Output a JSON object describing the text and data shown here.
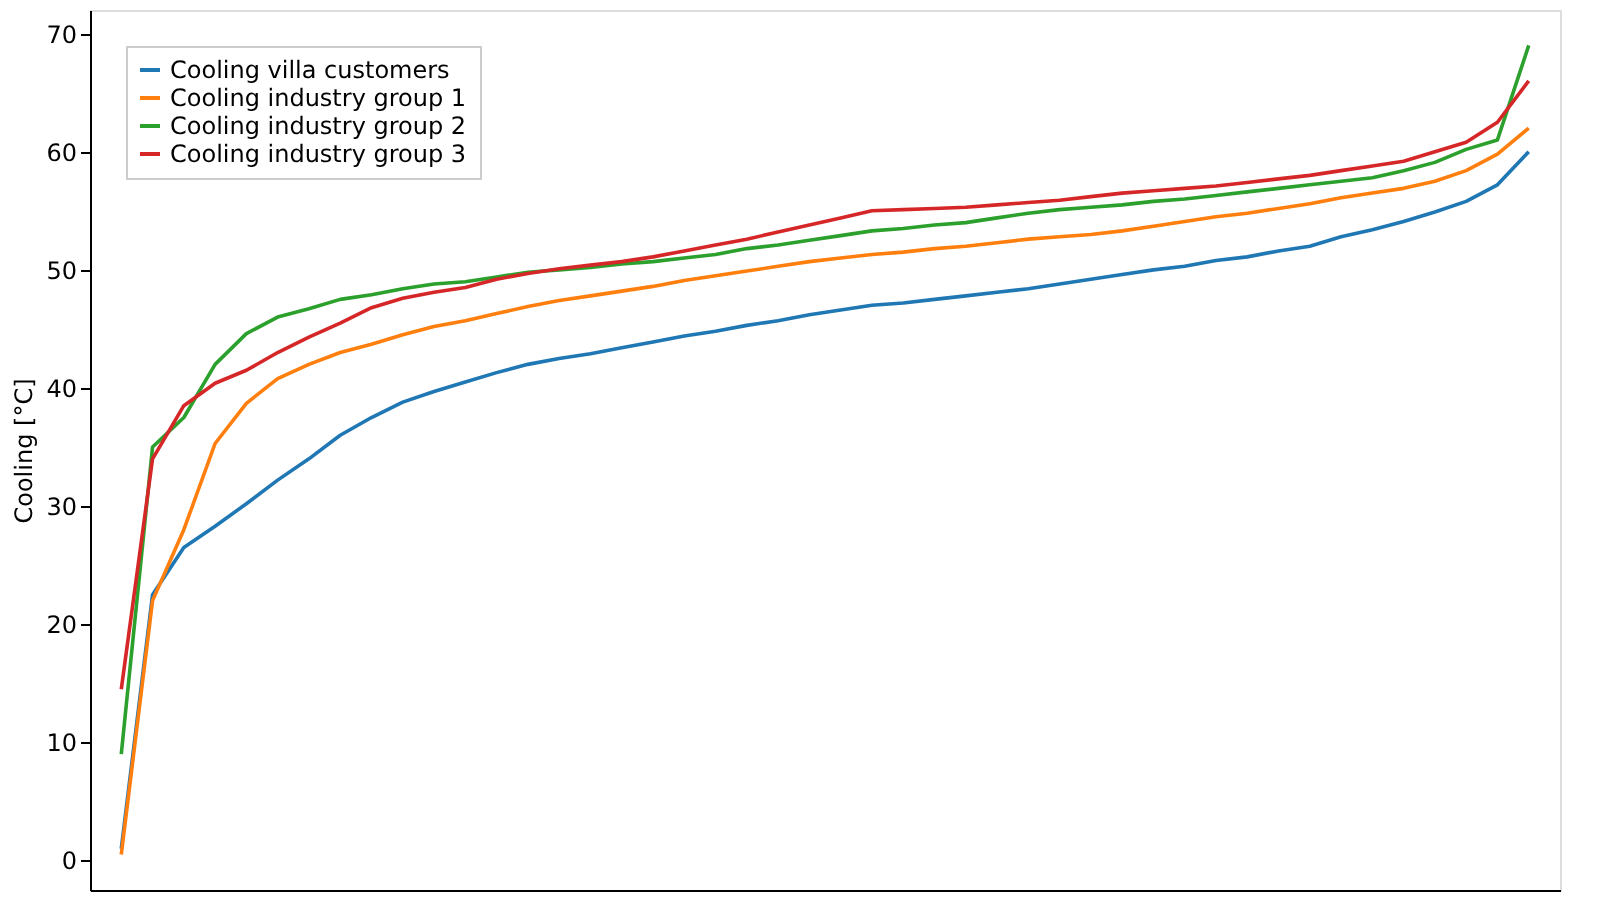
{
  "chart_data": {
    "type": "line",
    "ylabel": "Cooling [°C]",
    "ylim": [
      -2.5,
      72
    ],
    "yticks": [
      0,
      10,
      20,
      30,
      40,
      50,
      60,
      70
    ],
    "grid": false,
    "legend": "top left",
    "tick_labels": "y",
    "marker": "none",
    "line_style": "solid",
    "categories": [
      null,
      null,
      null,
      null,
      null,
      null,
      null,
      null,
      null,
      null,
      null,
      null,
      null,
      null,
      null,
      null,
      null,
      null,
      null,
      null,
      null,
      null,
      null,
      null,
      null,
      null,
      null,
      null,
      null,
      null,
      null,
      null,
      null,
      null,
      null,
      null,
      null,
      null,
      null,
      null,
      null,
      null,
      null,
      null,
      null,
      null
    ],
    "series": [
      {
        "name": "Cooling villa customers",
        "color": "#1f77b4",
        "values": [
          1,
          22.5,
          26.5,
          28.3,
          30.2,
          32.2,
          34,
          36,
          37.5,
          38.8,
          39.7,
          40.5,
          41.3,
          42,
          42.5,
          42.9,
          43.4,
          43.9,
          44.4,
          44.8,
          45.3,
          45.7,
          46.2,
          46.6,
          47,
          47.2,
          47.5,
          47.8,
          48.1,
          48.4,
          48.8,
          49.2,
          49.6,
          50,
          50.3,
          50.8,
          51.1,
          51.6,
          52,
          52.8,
          53.4,
          54.1,
          54.9,
          55.8,
          57.2,
          60
        ]
      },
      {
        "name": "Cooling industry group 1",
        "color": "#ff7f0e",
        "values": [
          0.5,
          22,
          28,
          35.3,
          38.7,
          40.8,
          42,
          43,
          43.7,
          44.5,
          45.2,
          45.7,
          46.3,
          46.9,
          47.4,
          47.8,
          48.2,
          48.6,
          49.1,
          49.5,
          49.9,
          50.3,
          50.7,
          51,
          51.3,
          51.5,
          51.8,
          52,
          52.3,
          52.6,
          52.8,
          53,
          53.3,
          53.7,
          54.1,
          54.5,
          54.8,
          55.2,
          55.6,
          56.1,
          56.5,
          56.9,
          57.5,
          58.4,
          59.8,
          62
        ]
      },
      {
        "name": "Cooling industry group 2",
        "color": "#2ca02c",
        "values": [
          9,
          35,
          37.5,
          42,
          44.6,
          46,
          46.7,
          47.5,
          47.9,
          48.4,
          48.8,
          49,
          49.4,
          49.8,
          50,
          50.2,
          50.5,
          50.7,
          51,
          51.3,
          51.8,
          52.1,
          52.5,
          52.9,
          53.3,
          53.5,
          53.8,
          54,
          54.4,
          54.8,
          55.1,
          55.3,
          55.5,
          55.8,
          56,
          56.3,
          56.6,
          56.9,
          57.2,
          57.5,
          57.8,
          58.4,
          59.1,
          60.2,
          61,
          69
        ]
      },
      {
        "name": "Cooling industry group 3",
        "color": "#d62728",
        "values": [
          14.5,
          34,
          38.5,
          40.4,
          41.5,
          43,
          44.3,
          45.5,
          46.8,
          47.6,
          48.1,
          48.5,
          49.2,
          49.7,
          50.1,
          50.4,
          50.7,
          51.1,
          51.6,
          52.1,
          52.6,
          53.2,
          53.8,
          54.4,
          55,
          55.1,
          55.2,
          55.3,
          55.5,
          55.7,
          55.9,
          56.2,
          56.5,
          56.7,
          56.9,
          57.1,
          57.4,
          57.7,
          58,
          58.4,
          58.8,
          59.2,
          60,
          60.8,
          62.5,
          66
        ]
      }
    ]
  }
}
